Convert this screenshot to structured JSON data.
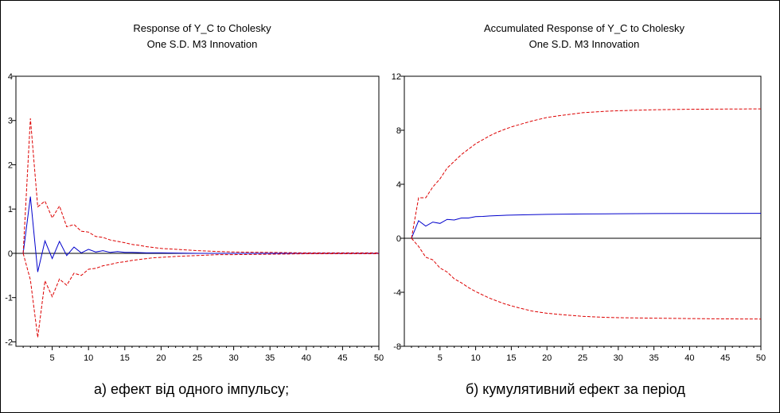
{
  "captions": {
    "left": "а) ефект від одного імпульсу;",
    "right": "б) кумулятивний ефект за період"
  },
  "colors": {
    "response": "#0000cc",
    "band": "#dd0000",
    "axis": "#000000"
  },
  "chart_data": [
    {
      "type": "line",
      "title": [
        "Response of Y_C to Cholesky",
        "One S.D. M3 Innovation"
      ],
      "xlabel": "",
      "ylabel": "",
      "xlim": [
        0,
        50
      ],
      "ylim": [
        -2.1,
        4
      ],
      "xticks": [
        5,
        10,
        15,
        20,
        25,
        30,
        35,
        40,
        45,
        50
      ],
      "yticks": [
        -2,
        -1,
        0,
        1,
        2,
        3,
        4
      ],
      "grid": false,
      "series": [
        {
          "style": "solid",
          "x": [
            1,
            2,
            3,
            4,
            5,
            6,
            7,
            8,
            9,
            10,
            11,
            12,
            13,
            14,
            15,
            16,
            18,
            20,
            25,
            30,
            35,
            40,
            45,
            50
          ],
          "y": [
            0,
            1.28,
            -0.42,
            0.28,
            -0.12,
            0.27,
            -0.05,
            0.14,
            0.01,
            0.09,
            0.03,
            0.06,
            0.02,
            0.04,
            0.02,
            0.02,
            0.01,
            0.01,
            0,
            0,
            0,
            0,
            0,
            0
          ]
        },
        {
          "style": "dashed",
          "x": [
            1,
            2,
            3,
            4,
            5,
            6,
            7,
            8,
            9,
            10,
            11,
            12,
            13,
            14,
            15,
            16,
            17,
            18,
            19,
            20,
            22,
            25,
            28,
            30,
            35,
            40,
            45,
            50
          ],
          "y": [
            0,
            3.05,
            1.05,
            1.18,
            0.8,
            1.07,
            0.6,
            0.65,
            0.5,
            0.48,
            0.38,
            0.36,
            0.3,
            0.27,
            0.24,
            0.2,
            0.18,
            0.15,
            0.13,
            0.11,
            0.09,
            0.06,
            0.04,
            0.03,
            0.02,
            0.01,
            0.01,
            0.01
          ]
        },
        {
          "style": "dashed",
          "x": [
            1,
            2,
            3,
            4,
            5,
            6,
            7,
            8,
            9,
            10,
            11,
            12,
            13,
            14,
            15,
            16,
            17,
            18,
            19,
            20,
            22,
            25,
            28,
            30,
            35,
            40,
            45,
            50
          ],
          "y": [
            0,
            -0.6,
            -1.9,
            -0.62,
            -0.98,
            -0.58,
            -0.72,
            -0.45,
            -0.5,
            -0.36,
            -0.34,
            -0.28,
            -0.25,
            -0.21,
            -0.19,
            -0.16,
            -0.14,
            -0.12,
            -0.1,
            -0.09,
            -0.07,
            -0.05,
            -0.03,
            -0.03,
            -0.02,
            -0.01,
            -0.01,
            -0.01
          ]
        }
      ]
    },
    {
      "type": "line",
      "title": [
        "Accumulated Response of Y_C to Cholesky",
        "One S.D. M3 Innovation"
      ],
      "xlabel": "",
      "ylabel": "",
      "xlim": [
        0,
        50
      ],
      "ylim": [
        -8,
        12
      ],
      "xticks": [
        5,
        10,
        15,
        20,
        25,
        30,
        35,
        40,
        45,
        50
      ],
      "yticks": [
        -8,
        -4,
        0,
        4,
        8,
        12
      ],
      "grid": false,
      "series": [
        {
          "style": "solid",
          "x": [
            1,
            2,
            3,
            4,
            5,
            6,
            7,
            8,
            9,
            10,
            11,
            12,
            14,
            16,
            18,
            20,
            25,
            30,
            35,
            40,
            45,
            50
          ],
          "y": [
            0,
            1.3,
            0.9,
            1.2,
            1.1,
            1.4,
            1.35,
            1.5,
            1.5,
            1.6,
            1.62,
            1.65,
            1.7,
            1.73,
            1.75,
            1.77,
            1.8,
            1.82,
            1.83,
            1.84,
            1.84,
            1.85
          ]
        },
        {
          "style": "dashed",
          "x": [
            1,
            2,
            3,
            4,
            5,
            6,
            7,
            8,
            9,
            10,
            11,
            12,
            13,
            14,
            15,
            16,
            18,
            20,
            22,
            25,
            28,
            30,
            35,
            40,
            45,
            50
          ],
          "y": [
            0,
            3.0,
            3.0,
            3.8,
            4.4,
            5.2,
            5.7,
            6.2,
            6.6,
            7.0,
            7.3,
            7.6,
            7.85,
            8.05,
            8.25,
            8.4,
            8.7,
            8.95,
            9.1,
            9.3,
            9.4,
            9.45,
            9.52,
            9.55,
            9.57,
            9.58
          ]
        },
        {
          "style": "dashed",
          "x": [
            1,
            2,
            3,
            4,
            5,
            6,
            7,
            8,
            9,
            10,
            11,
            12,
            13,
            14,
            15,
            16,
            18,
            20,
            22,
            25,
            28,
            30,
            35,
            40,
            45,
            50
          ],
          "y": [
            0,
            -0.6,
            -1.4,
            -1.6,
            -2.2,
            -2.5,
            -3.0,
            -3.3,
            -3.65,
            -3.95,
            -4.2,
            -4.45,
            -4.65,
            -4.85,
            -5.0,
            -5.15,
            -5.4,
            -5.55,
            -5.65,
            -5.78,
            -5.85,
            -5.88,
            -5.92,
            -5.95,
            -5.97,
            -5.98
          ]
        }
      ]
    }
  ]
}
